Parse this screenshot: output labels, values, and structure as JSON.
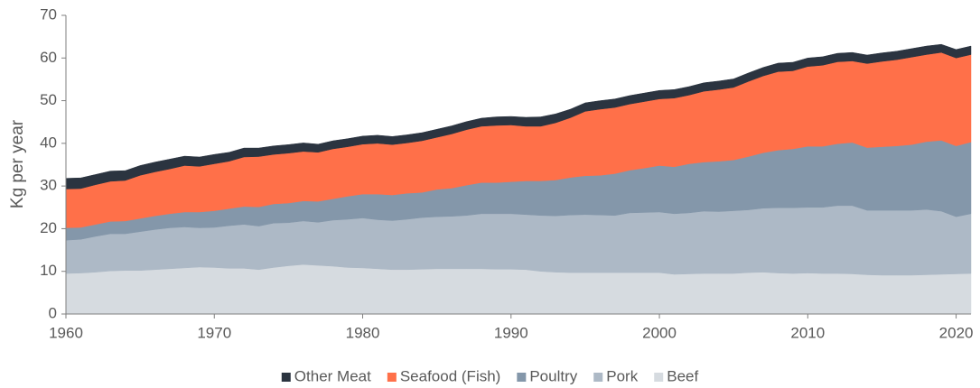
{
  "chart_data": {
    "type": "stacked_area",
    "y_label": "Kg per year",
    "x": [
      1960,
      1961,
      1962,
      1963,
      1964,
      1965,
      1966,
      1967,
      1968,
      1969,
      1970,
      1971,
      1972,
      1973,
      1974,
      1975,
      1976,
      1977,
      1978,
      1979,
      1980,
      1981,
      1982,
      1983,
      1984,
      1985,
      1986,
      1987,
      1988,
      1989,
      1990,
      1991,
      1992,
      1993,
      1994,
      1995,
      1996,
      1997,
      1998,
      1999,
      2000,
      2001,
      2002,
      2003,
      2004,
      2005,
      2006,
      2007,
      2008,
      2009,
      2010,
      2011,
      2012,
      2013,
      2014,
      2015,
      2016,
      2017,
      2018,
      2019,
      2020,
      2021
    ],
    "series": [
      {
        "name": "Other Meat",
        "color": "#2b3440",
        "values": [
          2.5,
          2.5,
          2.4,
          2.4,
          2.3,
          2.3,
          2.3,
          2.3,
          2.2,
          2.2,
          2.2,
          2.1,
          2.1,
          2.0,
          2.0,
          2.0,
          2.0,
          1.9,
          1.9,
          1.9,
          1.9,
          1.9,
          1.9,
          1.9,
          1.9,
          1.9,
          1.9,
          1.9,
          1.9,
          2.0,
          2.0,
          2.1,
          2.2,
          2.1,
          2.0,
          2.0,
          2.0,
          2.0,
          2.0,
          2.0,
          2.0,
          2.0,
          2.0,
          2.0,
          2.0,
          2.0,
          2.0,
          2.0,
          2.0,
          2.0,
          2.0,
          2.0,
          2.0,
          2.0,
          2.0,
          2.0,
          2.0,
          2.0,
          2.0,
          1.9,
          2.0,
          2.0
        ]
      },
      {
        "name": "Seafood (Fish)",
        "color": "#ff7049",
        "values": [
          9.1,
          9.1,
          9.3,
          9.4,
          9.5,
          10.1,
          10.3,
          10.5,
          10.9,
          10.7,
          11.0,
          11.1,
          11.6,
          11.8,
          11.6,
          11.7,
          11.6,
          11.5,
          11.7,
          11.6,
          11.7,
          11.9,
          11.8,
          11.8,
          12.1,
          12.2,
          12.7,
          13.0,
          13.2,
          13.4,
          13.3,
          12.8,
          12.8,
          13.4,
          14.0,
          15.1,
          15.5,
          15.5,
          15.5,
          15.6,
          15.6,
          16.1,
          16.1,
          16.6,
          16.8,
          17.0,
          17.6,
          18.0,
          18.4,
          18.3,
          18.7,
          19.0,
          19.2,
          19.1,
          19.7,
          20.0,
          20.2,
          20.5,
          20.4,
          20.6,
          20.6,
          20.5
        ]
      },
      {
        "name": "Poultry",
        "color": "#8497aa",
        "values": [
          2.9,
          2.8,
          2.8,
          2.9,
          3.0,
          3.1,
          3.2,
          3.3,
          3.5,
          3.7,
          3.9,
          4.0,
          4.2,
          4.5,
          4.5,
          4.6,
          4.7,
          4.9,
          5.0,
          5.4,
          5.6,
          6.0,
          6.0,
          6.1,
          5.9,
          6.4,
          6.6,
          7.1,
          7.3,
          7.3,
          7.5,
          7.9,
          8.1,
          8.4,
          8.8,
          9.1,
          9.3,
          9.8,
          10.0,
          10.4,
          10.9,
          11.0,
          11.5,
          11.5,
          11.8,
          11.9,
          12.5,
          13.0,
          13.5,
          13.8,
          14.3,
          14.3,
          14.5,
          14.8,
          14.7,
          14.9,
          15.1,
          15.4,
          15.9,
          16.6,
          16.6,
          16.8
        ]
      },
      {
        "name": "Pork",
        "color": "#adb9c6",
        "values": [
          7.8,
          7.9,
          8.4,
          8.7,
          8.6,
          9.1,
          9.4,
          9.6,
          9.6,
          9.2,
          9.4,
          10.0,
          10.3,
          10.2,
          10.4,
          10.1,
          10.2,
          10.1,
          10.8,
          11.3,
          11.7,
          11.5,
          11.5,
          11.8,
          12.1,
          12.2,
          12.3,
          12.5,
          12.9,
          13.0,
          13.0,
          12.9,
          13.1,
          13.2,
          13.5,
          13.6,
          13.5,
          13.4,
          14.0,
          14.1,
          14.2,
          14.2,
          14.3,
          14.6,
          14.5,
          14.7,
          14.7,
          15.0,
          15.3,
          15.4,
          15.4,
          15.5,
          15.9,
          16.0,
          15.1,
          15.2,
          15.2,
          15.2,
          15.3,
          14.8,
          13.4,
          14.0
        ]
      },
      {
        "name": "Beef",
        "color": "#d6dbe0",
        "values": [
          9.5,
          9.6,
          9.8,
          10.1,
          10.2,
          10.2,
          10.4,
          10.6,
          10.8,
          11.0,
          10.9,
          10.7,
          10.7,
          10.4,
          10.9,
          11.3,
          11.6,
          11.4,
          11.2,
          10.9,
          10.8,
          10.6,
          10.4,
          10.4,
          10.5,
          10.6,
          10.6,
          10.6,
          10.6,
          10.5,
          10.5,
          10.4,
          10.0,
          9.8,
          9.7,
          9.7,
          9.7,
          9.7,
          9.7,
          9.7,
          9.7,
          9.3,
          9.4,
          9.5,
          9.5,
          9.5,
          9.7,
          9.8,
          9.6,
          9.5,
          9.6,
          9.5,
          9.5,
          9.4,
          9.2,
          9.1,
          9.1,
          9.1,
          9.2,
          9.3,
          9.4,
          9.5
        ]
      }
    ],
    "xlim": [
      1960,
      2021
    ],
    "xticks": [
      1960,
      1970,
      1980,
      1990,
      2000,
      2010,
      2020
    ],
    "ylim": [
      0,
      70
    ],
    "yticks": [
      0,
      10,
      20,
      30,
      40,
      50,
      60,
      70
    ],
    "grid": false,
    "legend": "bottom"
  }
}
